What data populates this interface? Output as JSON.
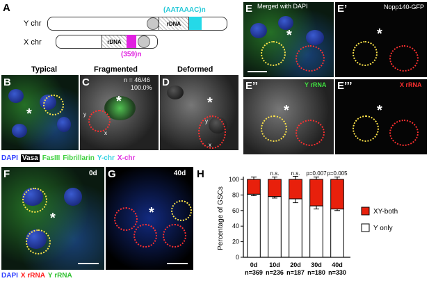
{
  "panel_A": {
    "letter": "A",
    "y_chr_label": "Y chr",
    "x_chr_label": "X chr",
    "y_rdna": "rDNA",
    "x_rdna": "rDNA",
    "y_repeat": "(AATAAAC)n",
    "x_repeat": "(359)n",
    "colors": {
      "y_repeat": "#25d9e8",
      "x_repeat": "#e020e0"
    }
  },
  "panel_B": {
    "letter": "B",
    "title": "Typical"
  },
  "panel_C": {
    "letter": "C",
    "title": "Fragmented",
    "count": "n = 46/46",
    "percent": "100.0%",
    "y_mark": "y",
    "x_mark": "x"
  },
  "panel_D": {
    "letter": "D",
    "title": "Deformed",
    "y_mark": "y",
    "x_mark": "x"
  },
  "legend_BD": {
    "dapi": "DAPI",
    "vasa": "Vasa",
    "fasiii": "FasIII",
    "fibrillarin": "Fibrillarin",
    "ychr": "Y-chr",
    "xchr": "X-chr",
    "colors": {
      "dapi": "#3040ff",
      "vasa_bg": "#000000",
      "fasiii": "#40d040",
      "fibrillarin": "#40d040",
      "ychr": "#30d0e0",
      "xchr": "#e030e0"
    }
  },
  "panel_E": {
    "letter": "E",
    "label": "Merged with DAPI",
    "label_colored_part": "DAPI"
  },
  "panel_E1": {
    "letter": "E’",
    "label": "Nopp140-GFP"
  },
  "panel_E2": {
    "letter": "E’’",
    "label": "Y rRNA"
  },
  "panel_E3": {
    "letter": "E’’’",
    "label": "X rRNA"
  },
  "panel_F": {
    "letter": "F",
    "day": "0d"
  },
  "panel_G": {
    "letter": "G",
    "day": "40d"
  },
  "legend_FG": {
    "dapi": "DAPI",
    "xrrna": "X rRNA",
    "yrrna": "Y rRNA",
    "colors": {
      "dapi": "#3040ff",
      "xrrna": "#ff2020",
      "yrrna": "#30c030"
    }
  },
  "panel_H": {
    "letter": "H"
  },
  "chart_data": {
    "type": "bar",
    "stacked": true,
    "categories": [
      "0d",
      "10d",
      "20d",
      "30d",
      "40d"
    ],
    "category_n": [
      "n=369",
      "n=236",
      "n=187",
      "n=180",
      "n=330"
    ],
    "series": [
      {
        "name": "Y only",
        "color": "#ffffff",
        "values": [
          81,
          78,
          75,
          66,
          62
        ],
        "errors": [
          2,
          2,
          5,
          4,
          2
        ]
      },
      {
        "name": "XY-both",
        "color": "#e8200c",
        "values": [
          19,
          22,
          25,
          34,
          38
        ],
        "errors": [
          3,
          3,
          4,
          3,
          3
        ]
      }
    ],
    "significance": [
      "",
      "n.s.",
      "n.s.",
      "p=0.007",
      "p=0.005"
    ],
    "ylabel": "Percentage of GSCs",
    "ylim": [
      0,
      100
    ],
    "yticks": [
      0,
      20,
      40,
      60,
      80,
      100
    ],
    "legend_position": "right",
    "grid": false
  }
}
